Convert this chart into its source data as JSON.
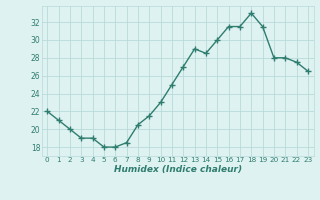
{
  "x": [
    0,
    1,
    2,
    3,
    4,
    5,
    6,
    7,
    8,
    9,
    10,
    11,
    12,
    13,
    14,
    15,
    16,
    17,
    18,
    19,
    20,
    21,
    22,
    23
  ],
  "y": [
    22,
    21,
    20,
    19,
    19,
    18,
    18,
    18.5,
    20.5,
    21.5,
    23,
    25,
    27,
    29,
    28.5,
    30,
    31.5,
    31.5,
    33,
    31.5,
    28,
    28,
    27.5,
    26.5
  ],
  "line_color": "#2e7d6e",
  "marker_color": "#2e7d6e",
  "bg_color": "#dff2f2",
  "grid_color": "#b8dada",
  "xlabel": "Humidex (Indice chaleur)",
  "xlabel_color": "#2e7d6e",
  "yticks": [
    18,
    20,
    22,
    24,
    26,
    28,
    30,
    32
  ],
  "xticks": [
    0,
    1,
    2,
    3,
    4,
    5,
    6,
    7,
    8,
    9,
    10,
    11,
    12,
    13,
    14,
    15,
    16,
    17,
    18,
    19,
    20,
    21,
    22,
    23
  ],
  "ylim": [
    17.0,
    33.8
  ],
  "xlim": [
    -0.5,
    23.5
  ]
}
